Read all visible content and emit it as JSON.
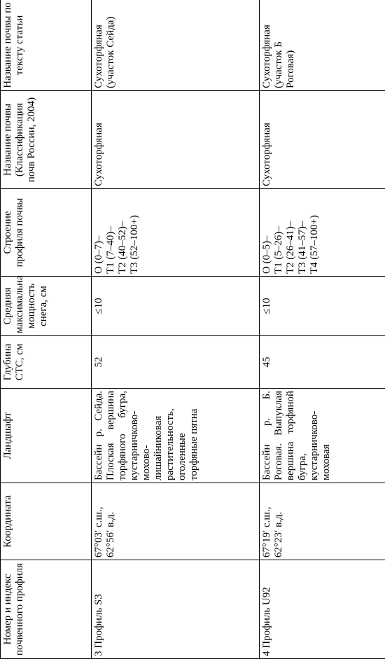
{
  "table": {
    "headers": [
      "Номер и индекс почвенного профиля",
      "Координата",
      "Ландшафт",
      "Глубина СТС, см",
      "Средняя максимальная мощность снега, см",
      "Строение профиля почвы",
      "Название почвы (Классификация почв России, 2004)",
      "Название почвы по тексту статьи"
    ],
    "rows": [
      [
        "3 Профиль S3",
        "67°03′ с.ш., 62°56′ в.д.",
        "Бассейн р. Сейда. Плоская вершина торфяного бугра, кустарничково-мохово-лишайниковая растительность, оголенные торфяные пятна",
        "52",
        "≤10",
        [
          "O (0–7)–",
          "T1 (7–40)–",
          "T2 (40–52)–",
          "T3 (52–100+)"
        ],
        "Сухоторфяная",
        "Сухоторфяная (участок Сейда)"
      ],
      [
        "4 Профиль U92",
        "67°19′ с.ш., 62°23′ в.д.",
        "Бассейн р. Б. Роговая. Выпуклая вершина торфяной бугра, кустарничково-моховая",
        "45",
        "≤10",
        [
          "O (0–5)–",
          "T1 (5–26)–",
          "T2 (26–41)–",
          "T3 (41–57)–",
          "T4 (57–100+)"
        ],
        "Сухоторфяная",
        "Сухоторфяная (участок Б Роговая)"
      ]
    ]
  }
}
